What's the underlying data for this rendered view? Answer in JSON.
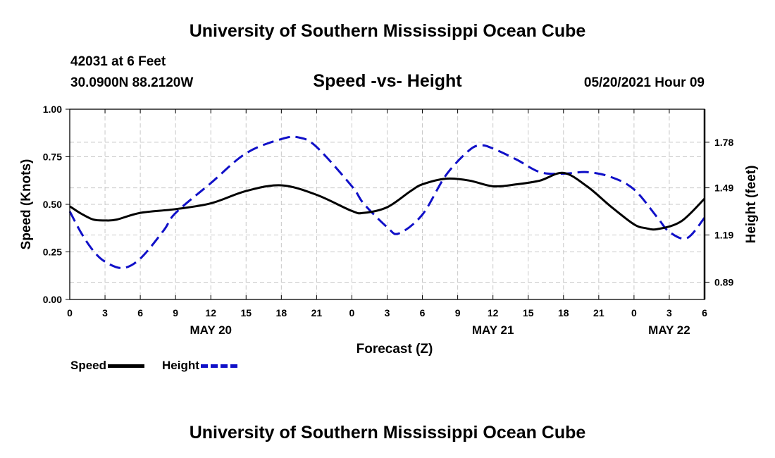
{
  "header": {
    "title": "University of Southern Mississippi Ocean Cube",
    "station": "42031 at 6 Feet",
    "coords": "30.0900N  88.2120W",
    "chart_title": "Speed -vs- Height",
    "datetime": "05/20/2021 Hour 09"
  },
  "footer": {
    "title": "University of Southern Mississippi Ocean Cube"
  },
  "legend": {
    "speed_label": "Speed",
    "height_label": "Height"
  },
  "colors": {
    "speed": "#000000",
    "height": "#1010c8",
    "grid": "#c8c8c8"
  },
  "chart_data": {
    "type": "line",
    "title": "Speed -vs- Height",
    "xlabel": "Forecast (Z)",
    "ylabel": "Speed (Knots)",
    "y2label": "Height (feet)",
    "x_range": [
      0,
      54
    ],
    "ylim": [
      0,
      1
    ],
    "y2lim": [
      0.78,
      1.99
    ],
    "x_tick_hours": [
      0,
      3,
      6,
      9,
      12,
      15,
      18,
      21,
      24,
      27,
      30,
      33,
      36,
      39,
      42,
      45,
      48,
      51,
      54
    ],
    "x_tick_labels": [
      "0",
      "3",
      "6",
      "9",
      "12",
      "15",
      "18",
      "21",
      "0",
      "3",
      "6",
      "9",
      "12",
      "15",
      "18",
      "21",
      "0",
      "3",
      "6"
    ],
    "date_labels": [
      {
        "hour": 12,
        "label": "MAY 20"
      },
      {
        "hour": 36,
        "label": "MAY 21"
      },
      {
        "hour": 51,
        "label": "MAY 22"
      }
    ],
    "y_ticks": [
      0,
      0.25,
      0.5,
      0.75,
      1.0
    ],
    "y_tick_labels": [
      "0.00",
      "0.25",
      "0.50",
      "0.75",
      "1.00"
    ],
    "y2_ticks": [
      0.89,
      1.19,
      1.49,
      1.78
    ],
    "y2_tick_labels": [
      "0.89",
      "1.19",
      "1.49",
      "1.78"
    ],
    "grid": true,
    "series": [
      {
        "name": "Speed",
        "axis": "left",
        "style": "solid",
        "x": [
          0,
          1,
          2,
          3,
          4,
          6,
          9,
          12,
          15,
          18,
          21,
          24,
          25,
          27,
          29,
          30,
          32,
          34,
          36,
          38,
          40,
          42,
          44,
          46,
          48,
          49,
          50,
          52,
          54
        ],
        "y": [
          0.49,
          0.45,
          0.42,
          0.415,
          0.42,
          0.455,
          0.475,
          0.505,
          0.57,
          0.6,
          0.55,
          0.465,
          0.455,
          0.485,
          0.57,
          0.605,
          0.635,
          0.625,
          0.595,
          0.605,
          0.625,
          0.665,
          0.595,
          0.49,
          0.395,
          0.375,
          0.37,
          0.41,
          0.53
        ]
      },
      {
        "name": "Height",
        "axis": "right",
        "style": "dashed",
        "x": [
          0,
          1,
          2,
          3,
          4.5,
          6,
          8,
          9,
          12,
          15,
          18,
          19.5,
          21,
          24,
          25,
          27,
          28,
          30,
          32,
          34,
          35,
          36,
          38,
          40,
          42,
          44,
          46,
          48,
          50,
          51,
          52.5,
          54
        ],
        "y": [
          1.34,
          1.2,
          1.09,
          1.02,
          0.98,
          1.04,
          1.22,
          1.33,
          1.52,
          1.71,
          1.8,
          1.81,
          1.75,
          1.5,
          1.39,
          1.24,
          1.2,
          1.32,
          1.57,
          1.73,
          1.76,
          1.74,
          1.67,
          1.59,
          1.58,
          1.59,
          1.56,
          1.48,
          1.3,
          1.21,
          1.17,
          1.3
        ]
      }
    ]
  }
}
